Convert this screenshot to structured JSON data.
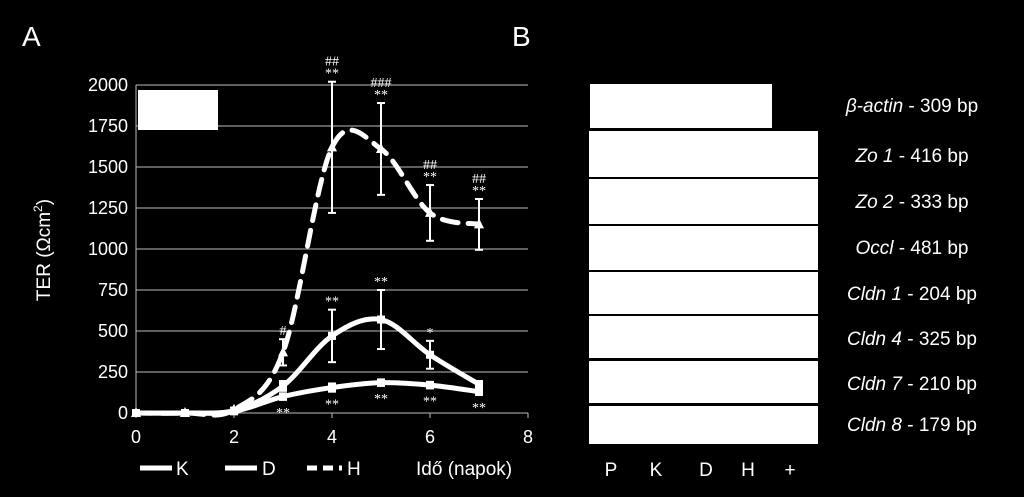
{
  "panels": {
    "a": "A",
    "b": "B"
  },
  "chart_data": {
    "type": "line",
    "ylabel": "TER (Ωcm",
    "ylabel_sup": "2",
    "ylabel_close": ")",
    "xlabel": "Idő (napok)",
    "xlim": [
      0,
      8
    ],
    "ylim": [
      0,
      2000
    ],
    "xticks": [
      "0",
      "2",
      "4",
      "6",
      "8"
    ],
    "yticks": [
      "0",
      "250",
      "500",
      "750",
      "1000",
      "1250",
      "1500",
      "1750",
      "2000"
    ],
    "grid": "horizontal",
    "series": [
      {
        "name": "K",
        "style": "solid",
        "marker": "square",
        "x": [
          0,
          1,
          2,
          3,
          4,
          5,
          6,
          7
        ],
        "y": [
          0,
          0,
          10,
          100,
          155,
          185,
          170,
          130
        ],
        "err": [
          0,
          0,
          0,
          20,
          25,
          20,
          20,
          20
        ],
        "sig_below": [
          "",
          "",
          "",
          "**",
          "**",
          "**",
          "**",
          "**"
        ]
      },
      {
        "name": "D",
        "style": "solid",
        "marker": "square",
        "x": [
          0,
          1,
          2,
          3,
          4,
          5,
          6,
          7
        ],
        "y": [
          0,
          0,
          15,
          165,
          470,
          570,
          355,
          175
        ],
        "err": [
          0,
          0,
          0,
          30,
          160,
          180,
          85,
          20
        ],
        "sig_above": [
          "",
          "",
          "",
          "",
          "**",
          "**",
          "*",
          ""
        ]
      },
      {
        "name": "H",
        "style": "dashed",
        "marker": "triangle",
        "x": [
          0,
          1,
          2,
          3,
          4,
          5,
          6,
          7
        ],
        "y": [
          0,
          0,
          20,
          370,
          1620,
          1610,
          1220,
          1150
        ],
        "err": [
          0,
          0,
          0,
          80,
          400,
          280,
          170,
          155
        ],
        "sig_top": [
          "",
          "",
          "",
          "#",
          "**",
          "**",
          "**",
          "**"
        ],
        "sig_top2": [
          "",
          "",
          "",
          "",
          "##",
          "###",
          "##",
          "##"
        ]
      }
    ],
    "legend": [
      "K",
      "D",
      "H"
    ],
    "legend_position": "bottom"
  },
  "gel": {
    "genes": [
      {
        "name": "β-actin",
        "size": " - 309 bp"
      },
      {
        "name": "Zo 1",
        "size": "  - 416 bp"
      },
      {
        "name": "Zo 2",
        "size": "  - 333 bp"
      },
      {
        "name": "Occl",
        "size": "   - 481 bp"
      },
      {
        "name": "Cldn 1",
        "size": " - 204 bp"
      },
      {
        "name": "Cldn 4",
        "size": " - 325 bp"
      },
      {
        "name": "Cldn 7",
        "size": " - 210 bp"
      },
      {
        "name": "Cldn 8",
        "size": " - 179 bp"
      }
    ],
    "lanes": [
      "P",
      "K",
      "D",
      "H",
      "+"
    ]
  }
}
